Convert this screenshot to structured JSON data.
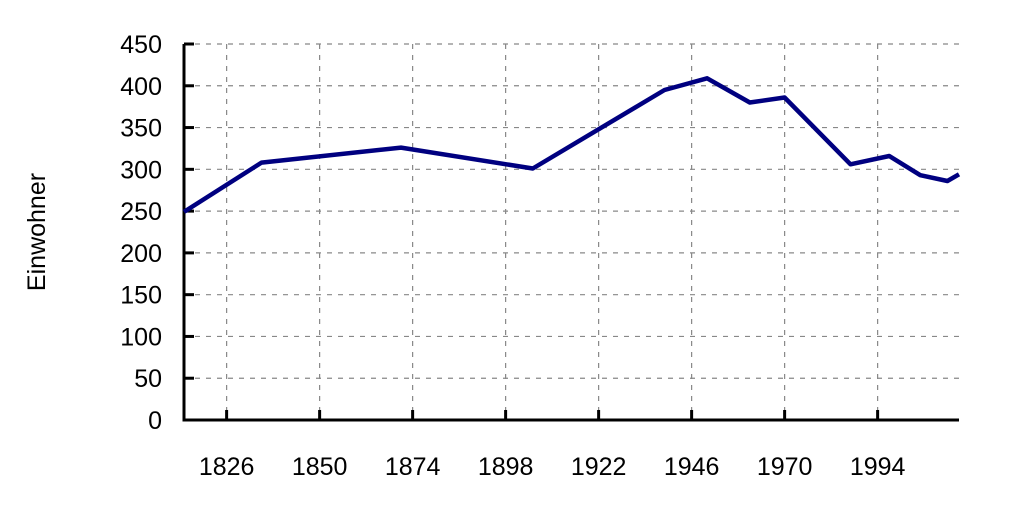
{
  "chart_data": {
    "type": "line",
    "title": "",
    "xlabel": "",
    "ylabel": "Einwohner",
    "xlim": [
      1815,
      2015
    ],
    "ylim": [
      0,
      450
    ],
    "grid": true,
    "x_ticks": [
      1826,
      1850,
      1874,
      1898,
      1922,
      1946,
      1970,
      1994
    ],
    "y_ticks": [
      0,
      50,
      100,
      150,
      200,
      250,
      300,
      350,
      400,
      450
    ],
    "line_color": "#000080",
    "series": [
      {
        "x": [
          1815,
          1835,
          1871,
          1905,
          1939,
          1950,
          1961,
          1970,
          1987,
          1997,
          2005,
          2012,
          2015
        ],
        "values": [
          249,
          308,
          326,
          301,
          395,
          409,
          380,
          386,
          306,
          316,
          293,
          286,
          294
        ]
      }
    ]
  }
}
